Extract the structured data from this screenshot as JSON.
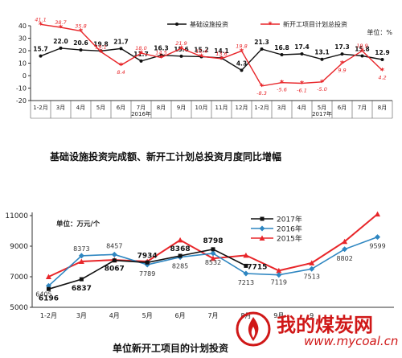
{
  "chart_data": [
    {
      "type": "line",
      "title": "基础设施投资完成额、新开工计划总投资月度同比增幅",
      "unit_label": "单位：%",
      "categories": [
        "1-2月",
        "3月",
        "4月",
        "5月",
        "6月",
        "7月",
        "8月",
        "9月",
        "10月",
        "11月",
        "12月",
        "1-2月",
        "3月",
        "4月",
        "5月",
        "6月",
        "7月",
        "8月"
      ],
      "year_labels": [
        "2016年",
        "2017年"
      ],
      "ylim": [
        -20,
        40
      ],
      "yticks": [
        -20,
        -10,
        0,
        10,
        20,
        30,
        40
      ],
      "grid": false,
      "legend_position": "top-right",
      "series": [
        {
          "name": "基础设施投资",
          "color": "#111111",
          "values": [
            15.7,
            22.0,
            20.6,
            19.8,
            21.7,
            11.7,
            16.3,
            15.6,
            15.2,
            14.1,
            4.3,
            21.3,
            16.8,
            17.4,
            13.1,
            17.3,
            15.8,
            12.9
          ],
          "labels": [
            "15.7",
            "22.0",
            "20.6",
            "19.8",
            "21.7",
            "11.7",
            "16.3",
            "15.6",
            "15.2",
            "14.1",
            "4.3",
            "21.3",
            "16.8",
            "17.4",
            "13.1",
            "17.3",
            "15.8",
            "12.9"
          ]
        },
        {
          "name": "新开工项目计划总投资",
          "color": "#e8262a",
          "values": [
            41.1,
            38.7,
            35.8,
            19.1,
            8.4,
            18.0,
            14.5,
            21.9,
            15.4,
            13.6,
            19.8,
            -8.3,
            -5.6,
            -6.1,
            -5.0,
            9.9,
            19.9,
            4.2
          ],
          "labels": [
            "41.1",
            "38.7",
            "35.8",
            "19.1",
            "8.4",
            "18.0",
            "14.5",
            "21.9",
            "15.4",
            "13.6",
            "19.8",
            "-8.3",
            "-5.6",
            "-6.1",
            "-5.0",
            "9.9",
            "19.9",
            "4.2"
          ]
        }
      ]
    },
    {
      "type": "line",
      "title": "单位新开工项目的计划投资",
      "unit_label": "单位：万元/个",
      "categories": [
        "1-2月",
        "3月",
        "4月",
        "5月",
        "6月",
        "7月",
        "8月",
        "9月",
        "10月",
        "11月",
        "12月"
      ],
      "ylim": [
        5000,
        11000
      ],
      "yticks": [
        5000,
        7000,
        9000,
        11000
      ],
      "legend_position": "top-center",
      "series": [
        {
          "name": "2017年",
          "color": "#111111",
          "marker": "square",
          "values": [
            6196,
            6837,
            8067,
            7934,
            8368,
            8798,
            7715,
            null,
            null,
            null,
            null
          ],
          "labels": [
            "6196",
            "6837",
            "8067",
            "7934",
            "8368",
            "8798",
            "7715",
            "",
            "",
            "",
            ""
          ]
        },
        {
          "name": "2016年",
          "color": "#2e86c1",
          "marker": "diamond",
          "values": [
            6405,
            8373,
            8457,
            7789,
            8285,
            8532,
            7213,
            7119,
            7513,
            8802,
            9599
          ],
          "labels": [
            "6405",
            "8373",
            "8457",
            "7789",
            "8285",
            "8532",
            "7213",
            "7119",
            "7513",
            "8802",
            "9599"
          ]
        },
        {
          "name": "2015年",
          "color": "#e8262a",
          "marker": "triangle",
          "values": [
            7000,
            8000,
            8100,
            8000,
            9400,
            8200,
            8400,
            7400,
            7900,
            9300,
            11100
          ],
          "labels": [
            "",
            "",
            "",
            "",
            "",
            "",
            "",
            "",
            "",
            "",
            ""
          ]
        }
      ]
    }
  ],
  "watermark": {
    "text": "我的煤炭网",
    "url": "www.mycoal.cn"
  }
}
